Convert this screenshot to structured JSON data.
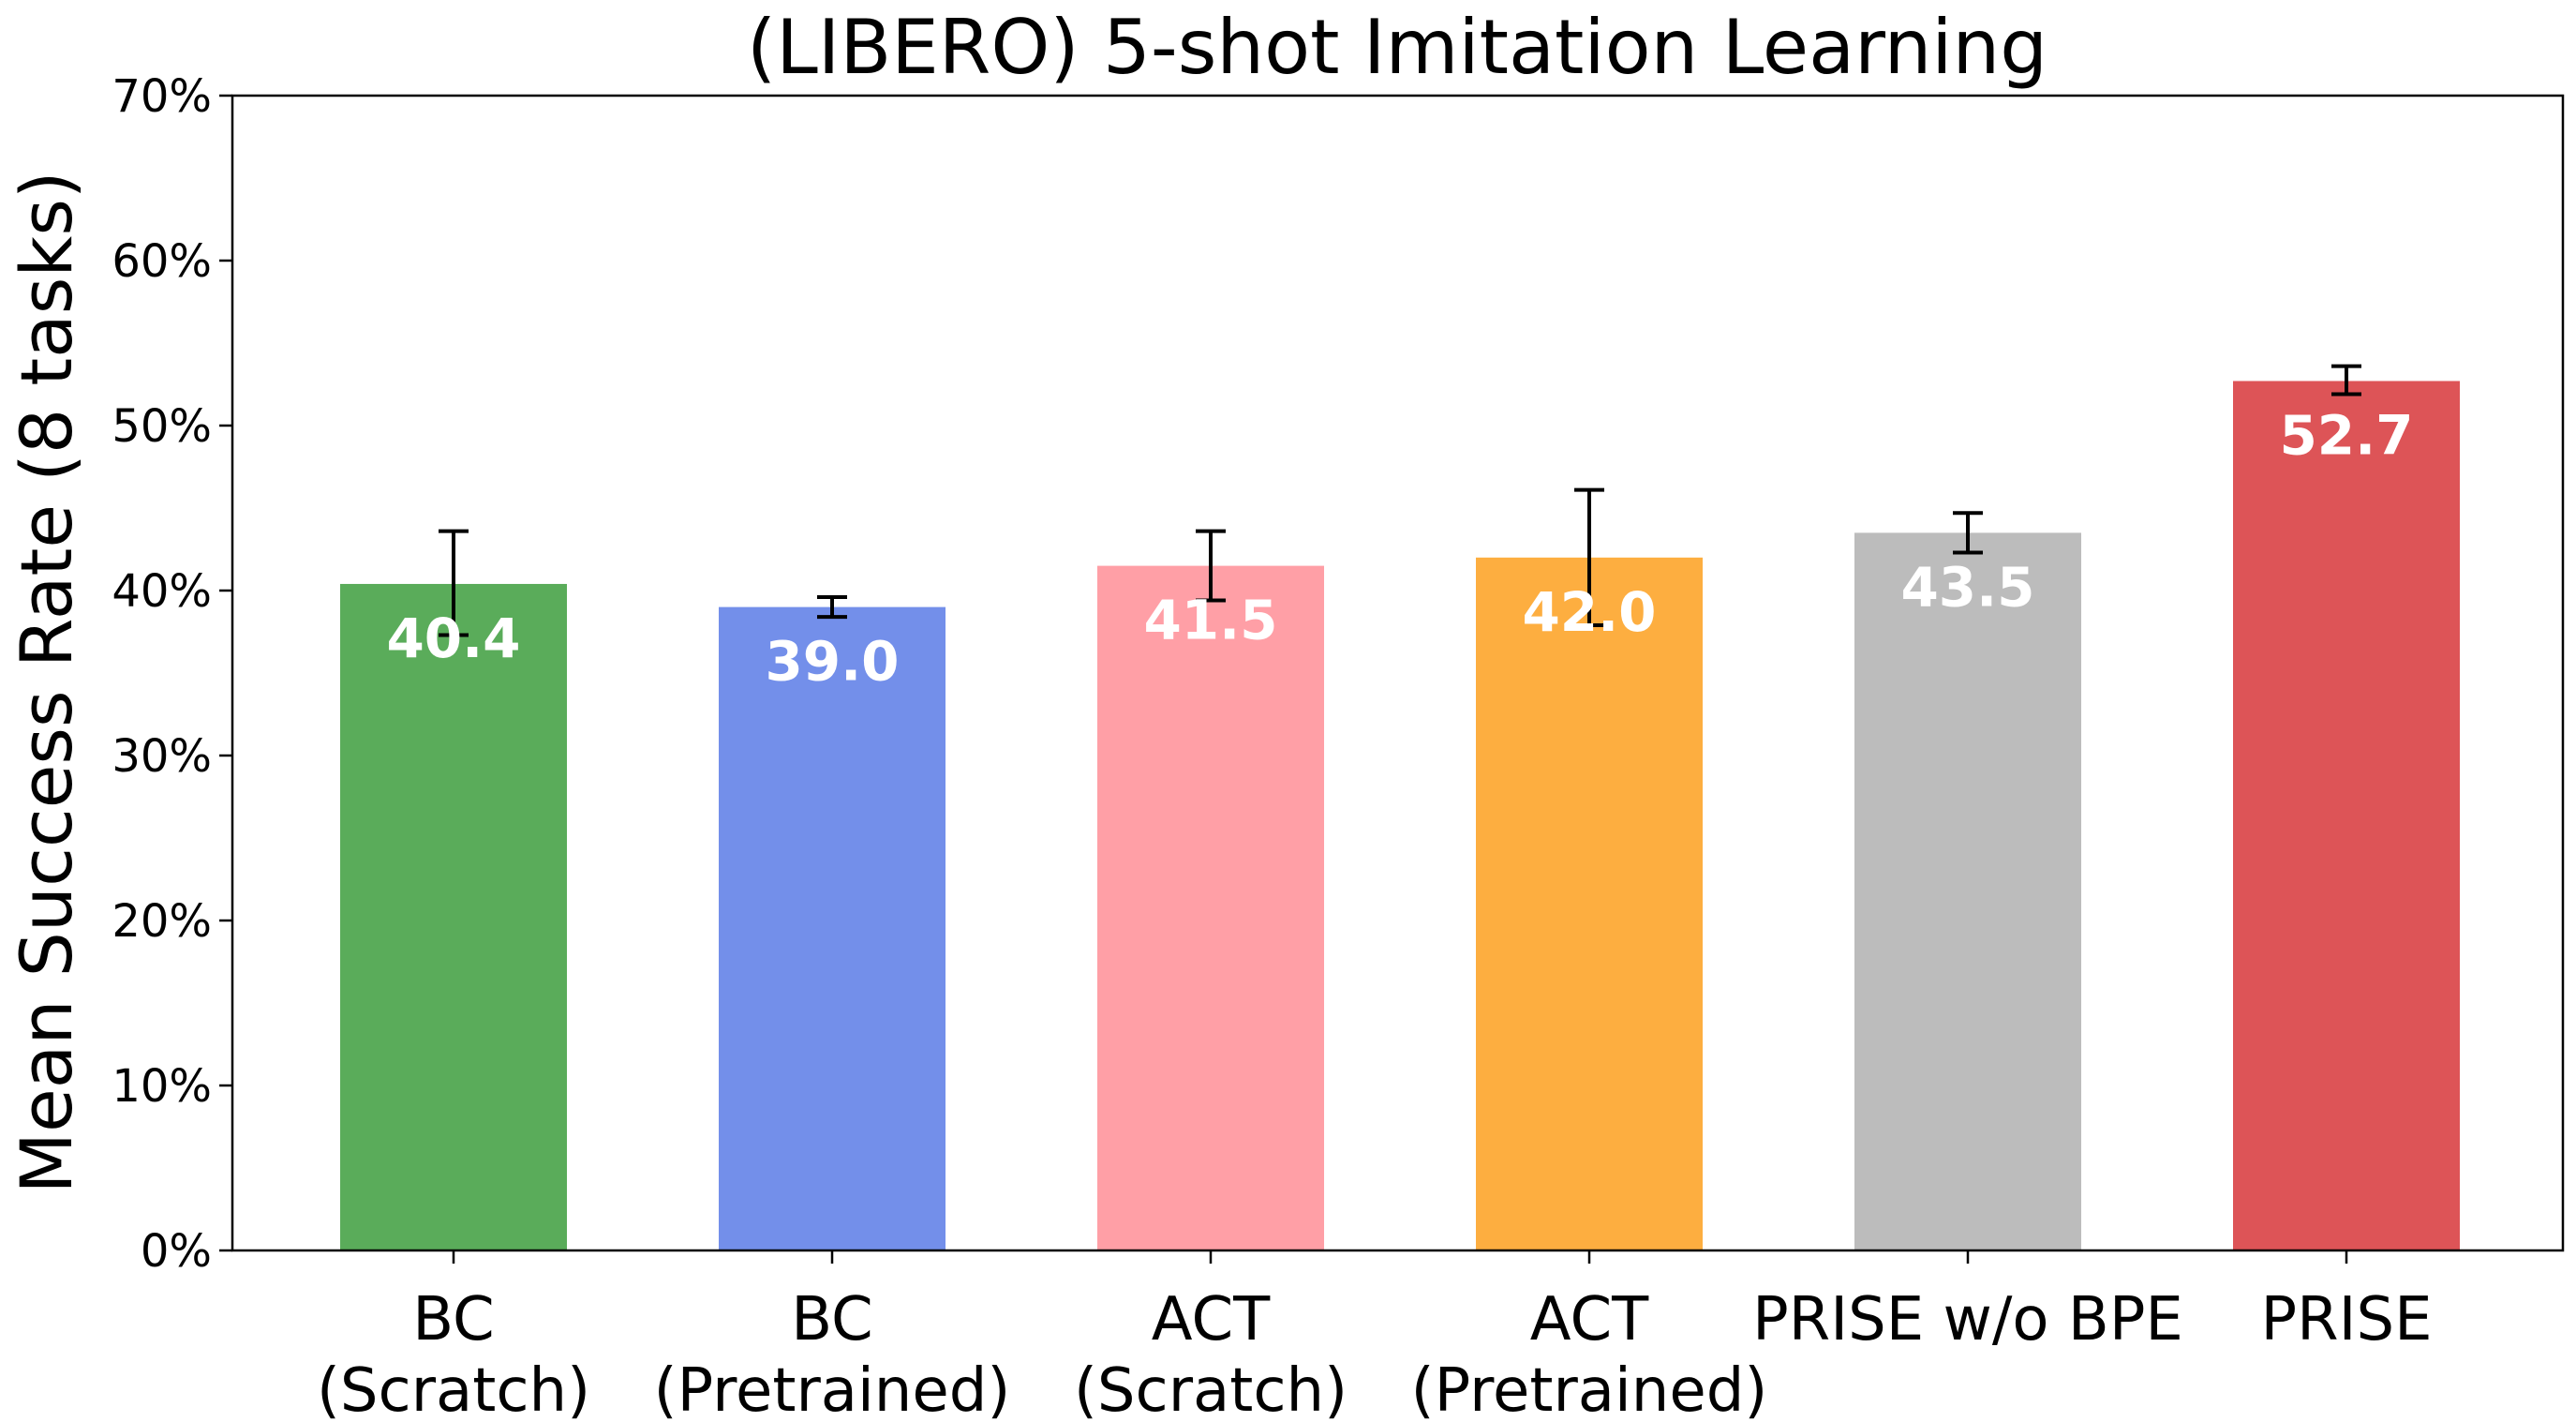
{
  "chart_data": {
    "type": "bar",
    "title": "(LIBERO) 5-shot Imitation Learning",
    "xlabel": "",
    "ylabel": "Mean Success Rate (8 tasks)",
    "ylim": [
      0,
      70
    ],
    "yticks": [
      "0%",
      "10%",
      "20%",
      "30%",
      "40%",
      "50%",
      "60%",
      "70%"
    ],
    "grid": false,
    "categories": [
      [
        "BC",
        "(Scratch)"
      ],
      [
        "BC",
        "(Pretrained)"
      ],
      [
        "ACT",
        "(Scratch)"
      ],
      [
        "ACT",
        "(Pretrained)"
      ],
      [
        "PRISE w/o BPE"
      ],
      [
        "PRISE"
      ]
    ],
    "values": [
      40.4,
      39.0,
      41.5,
      42.0,
      43.5,
      52.7
    ],
    "value_labels": [
      "40.4",
      "39.0",
      "41.5",
      "42.0",
      "43.5",
      "52.7"
    ],
    "error_low": [
      37.3,
      38.4,
      39.4,
      37.9,
      42.3,
      51.9
    ],
    "error_high": [
      43.6,
      39.6,
      43.6,
      46.1,
      44.7,
      53.6
    ],
    "colors": [
      "#5aac5a",
      "#738fea",
      "#ff9fa6",
      "#fdae40",
      "#bcbcbc",
      "#dd5457"
    ]
  }
}
